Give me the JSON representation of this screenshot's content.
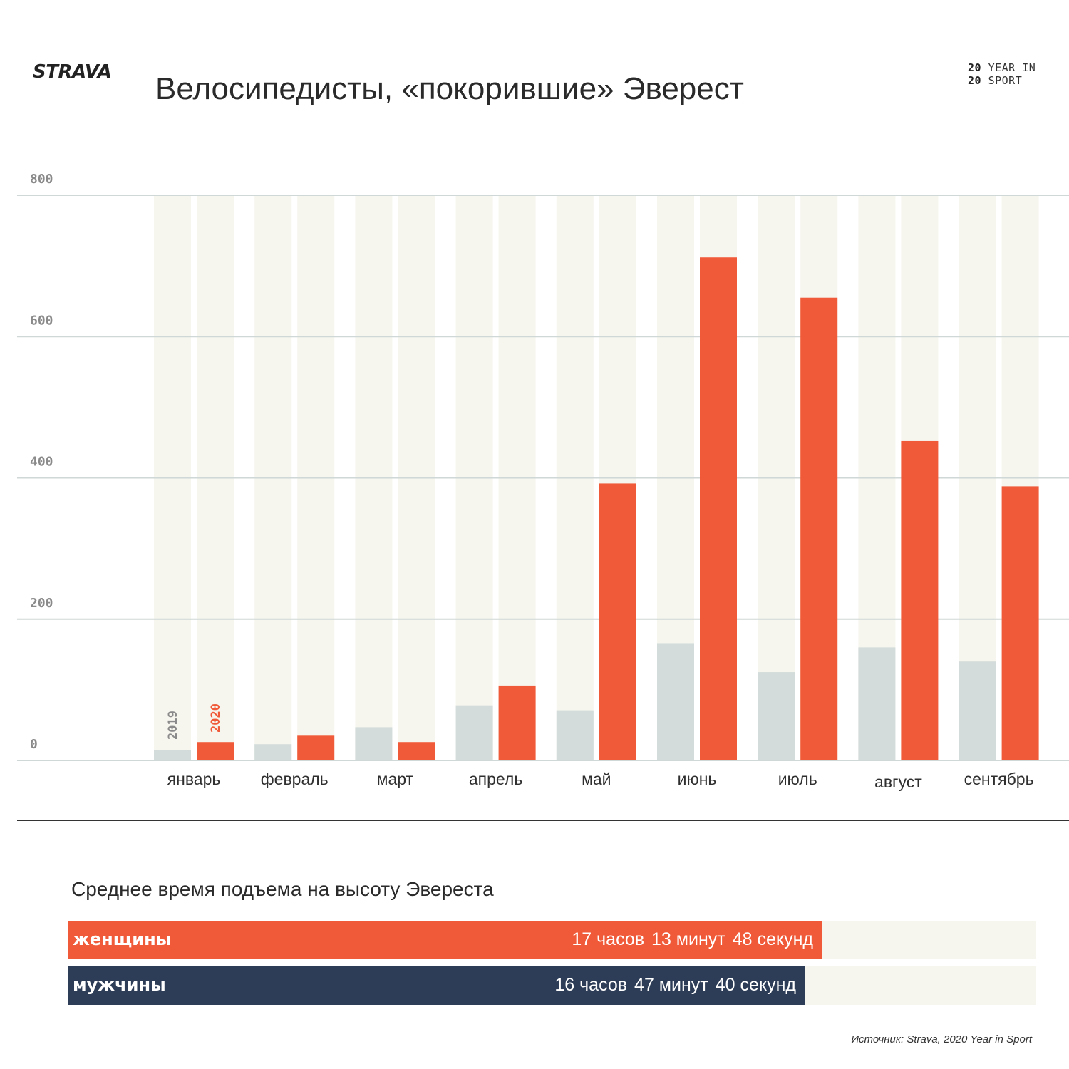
{
  "header": {
    "logo": "STRAVA",
    "badge_line1_num": "20",
    "badge_line1_text": "YEAR IN",
    "badge_line2_num": "20",
    "badge_line2_text": "SPORT",
    "title": "Велосипедисты, «покорившие» Эверест"
  },
  "colors": {
    "y2019": "#d3dcda",
    "y2020": "#f05a38",
    "track": "#f6f5ee",
    "men": "#2d3d57",
    "grid": "#cfd8d6"
  },
  "chart_data": {
    "type": "bar",
    "title": "Велосипедисты, «покорившие» Эверест",
    "categories": [
      "январь",
      "февраль",
      "март",
      "апрель",
      "май",
      "июнь",
      "июль",
      "август",
      "сентябрь"
    ],
    "series": [
      {
        "name": "2019",
        "values": [
          15,
          23,
          47,
          78,
          71,
          166,
          125,
          160,
          140
        ]
      },
      {
        "name": "2020",
        "values": [
          26,
          35,
          26,
          106,
          392,
          712,
          655,
          452,
          388
        ]
      }
    ],
    "yticks": [
      0,
      200,
      400,
      600,
      800
    ],
    "ylim": [
      0,
      800
    ],
    "grid": true,
    "legend": "inline labels on first category"
  },
  "comparison": {
    "title": "Среднее время подъема на высоту Эвереста",
    "rows": [
      {
        "label": "женщины",
        "hours": "17 часов",
        "minutes": "13 минут",
        "seconds": "48 секунд",
        "value_hours": 17.23
      },
      {
        "label": "мужчины",
        "hours": "16 часов",
        "minutes": "47 минут",
        "seconds": "40 секунд",
        "value_hours": 16.79
      }
    ]
  },
  "source": "Источник: Strava, 2020 Year in Sport"
}
